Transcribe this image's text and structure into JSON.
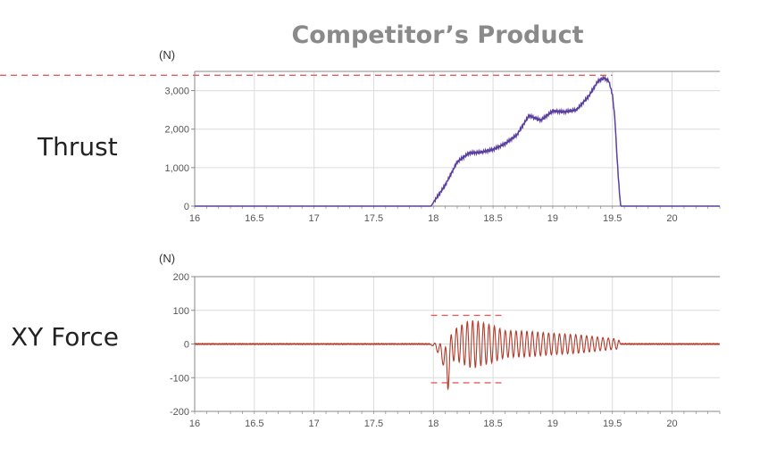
{
  "title": "Competitor’s Product",
  "charts": [
    {
      "label": "Thrust",
      "unit": "(N)"
    },
    {
      "label": "XY Force",
      "unit": "(N)"
    }
  ],
  "colors": {
    "thrust": "#5b3fa0",
    "xy": "#b23a2a",
    "ref": "#e06060",
    "grid": "#dcdcdc",
    "axis": "#888888"
  },
  "chart_data": [
    {
      "type": "line",
      "ylabel": "(N)",
      "x_ticks": [
        16,
        16.5,
        17,
        17.5,
        18,
        18.5,
        19,
        19.5,
        20
      ],
      "y_ticks": [
        0,
        1000,
        2000,
        3000
      ],
      "y_tick_labels": [
        "0",
        "1,000",
        "2,000",
        "3,000"
      ],
      "xlim": [
        16,
        20.4
      ],
      "ylim": [
        0,
        3500
      ],
      "grid": true,
      "series": [
        {
          "x": [
            16,
            17.9,
            17.98,
            18.1,
            18.2,
            18.3,
            18.4,
            18.5,
            18.6,
            18.7,
            18.8,
            18.9,
            19.0,
            19.1,
            19.2,
            19.3,
            19.38,
            19.43,
            19.47,
            19.5,
            19.52,
            19.54,
            19.56,
            19.57,
            19.6,
            20.4
          ],
          "y": [
            0,
            0,
            0,
            550,
            1150,
            1380,
            1400,
            1470,
            1620,
            1850,
            2350,
            2230,
            2470,
            2450,
            2500,
            2850,
            3250,
            3330,
            3250,
            2900,
            2300,
            1200,
            300,
            0,
            0,
            0
          ]
        }
      ],
      "reference_line": 3400
    },
    {
      "type": "line",
      "ylabel": "(N)",
      "x_ticks": [
        16,
        16.5,
        17,
        17.5,
        18,
        18.5,
        19,
        19.5,
        20
      ],
      "y_ticks": [
        -200,
        -100,
        0,
        100,
        200
      ],
      "y_tick_labels": [
        "-200",
        "-100",
        "0",
        "100",
        "200"
      ],
      "xlim": [
        16,
        20.4
      ],
      "ylim": [
        -200,
        200
      ],
      "grid": true,
      "series": [
        {
          "x": [
            16,
            17.97,
            18.02,
            18.08,
            18.12,
            18.15,
            18.2,
            18.3,
            18.35,
            18.4,
            18.5,
            18.6,
            18.8,
            19.0,
            19.2,
            19.4,
            19.55,
            19.57,
            20.4
          ],
          "amplitude": [
            0,
            0,
            8,
            30,
            65,
            40,
            50,
            70,
            70,
            65,
            55,
            40,
            38,
            32,
            28,
            20,
            15,
            0,
            0
          ],
          "offset": [
            0,
            0,
            -5,
            -30,
            -80,
            -10,
            0,
            0,
            0,
            0,
            0,
            0,
            0,
            0,
            0,
            0,
            0,
            0,
            0
          ]
        }
      ],
      "reference_lines": [
        85,
        -115
      ]
    }
  ]
}
